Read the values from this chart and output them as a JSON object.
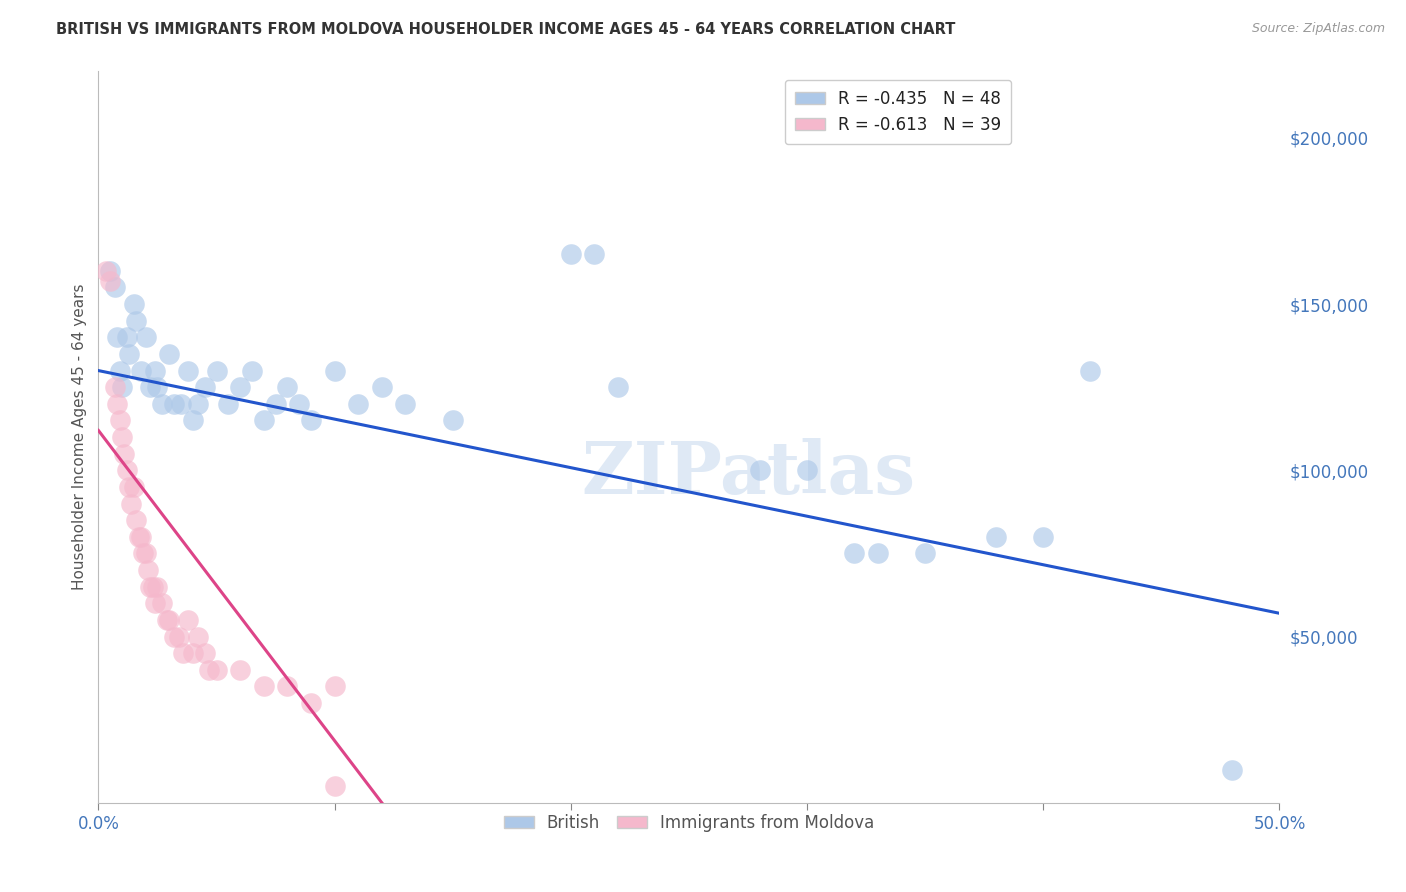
{
  "title": "BRITISH VS IMMIGRANTS FROM MOLDOVA HOUSEHOLDER INCOME AGES 45 - 64 YEARS CORRELATION CHART",
  "source": "Source: ZipAtlas.com",
  "ylabel": "Householder Income Ages 45 - 64 years",
  "xlim": [
    0.0,
    0.5
  ],
  "ylim": [
    0,
    220000
  ],
  "xtick_positions": [
    0.0,
    0.1,
    0.2,
    0.3,
    0.4,
    0.5
  ],
  "xticklabels_show": [
    "0.0%",
    "",
    "",
    "",
    "",
    "50.0%"
  ],
  "yticks_right": [
    50000,
    100000,
    150000,
    200000
  ],
  "ytick_labels_right": [
    "$50,000",
    "$100,000",
    "$150,000",
    "$200,000"
  ],
  "british_R": "-0.435",
  "british_N": "48",
  "moldova_R": "-0.613",
  "moldova_N": "39",
  "british_color": "#adc8e8",
  "british_line_color": "#2255cc",
  "moldova_color": "#f5b8cc",
  "moldova_line_color": "#dd4488",
  "watermark_text": "ZIPatlas",
  "british_points": [
    [
      0.005,
      160000
    ],
    [
      0.007,
      155000
    ],
    [
      0.008,
      140000
    ],
    [
      0.009,
      130000
    ],
    [
      0.01,
      125000
    ],
    [
      0.012,
      140000
    ],
    [
      0.013,
      135000
    ],
    [
      0.015,
      150000
    ],
    [
      0.016,
      145000
    ],
    [
      0.018,
      130000
    ],
    [
      0.02,
      140000
    ],
    [
      0.022,
      125000
    ],
    [
      0.024,
      130000
    ],
    [
      0.025,
      125000
    ],
    [
      0.027,
      120000
    ],
    [
      0.03,
      135000
    ],
    [
      0.032,
      120000
    ],
    [
      0.035,
      120000
    ],
    [
      0.038,
      130000
    ],
    [
      0.04,
      115000
    ],
    [
      0.042,
      120000
    ],
    [
      0.045,
      125000
    ],
    [
      0.05,
      130000
    ],
    [
      0.055,
      120000
    ],
    [
      0.06,
      125000
    ],
    [
      0.065,
      130000
    ],
    [
      0.07,
      115000
    ],
    [
      0.075,
      120000
    ],
    [
      0.08,
      125000
    ],
    [
      0.085,
      120000
    ],
    [
      0.09,
      115000
    ],
    [
      0.1,
      130000
    ],
    [
      0.11,
      120000
    ],
    [
      0.12,
      125000
    ],
    [
      0.13,
      120000
    ],
    [
      0.15,
      115000
    ],
    [
      0.2,
      165000
    ],
    [
      0.21,
      165000
    ],
    [
      0.22,
      125000
    ],
    [
      0.28,
      100000
    ],
    [
      0.3,
      100000
    ],
    [
      0.32,
      75000
    ],
    [
      0.33,
      75000
    ],
    [
      0.35,
      75000
    ],
    [
      0.38,
      80000
    ],
    [
      0.4,
      80000
    ],
    [
      0.42,
      130000
    ],
    [
      0.48,
      10000
    ]
  ],
  "moldova_points": [
    [
      0.003,
      160000
    ],
    [
      0.005,
      157000
    ],
    [
      0.007,
      125000
    ],
    [
      0.008,
      120000
    ],
    [
      0.009,
      115000
    ],
    [
      0.01,
      110000
    ],
    [
      0.011,
      105000
    ],
    [
      0.012,
      100000
    ],
    [
      0.013,
      95000
    ],
    [
      0.014,
      90000
    ],
    [
      0.015,
      95000
    ],
    [
      0.016,
      85000
    ],
    [
      0.017,
      80000
    ],
    [
      0.018,
      80000
    ],
    [
      0.019,
      75000
    ],
    [
      0.02,
      75000
    ],
    [
      0.021,
      70000
    ],
    [
      0.022,
      65000
    ],
    [
      0.023,
      65000
    ],
    [
      0.024,
      60000
    ],
    [
      0.025,
      65000
    ],
    [
      0.027,
      60000
    ],
    [
      0.029,
      55000
    ],
    [
      0.03,
      55000
    ],
    [
      0.032,
      50000
    ],
    [
      0.034,
      50000
    ],
    [
      0.036,
      45000
    ],
    [
      0.038,
      55000
    ],
    [
      0.04,
      45000
    ],
    [
      0.042,
      50000
    ],
    [
      0.045,
      45000
    ],
    [
      0.047,
      40000
    ],
    [
      0.05,
      40000
    ],
    [
      0.06,
      40000
    ],
    [
      0.07,
      35000
    ],
    [
      0.08,
      35000
    ],
    [
      0.09,
      30000
    ],
    [
      0.1,
      35000
    ],
    [
      0.1,
      5000
    ]
  ],
  "british_trendline": [
    [
      0.0,
      130000
    ],
    [
      0.5,
      57000
    ]
  ],
  "moldova_trendline": [
    [
      0.0,
      112000
    ],
    [
      0.12,
      0
    ]
  ],
  "background_color": "#ffffff",
  "grid_color": "#cccccc"
}
